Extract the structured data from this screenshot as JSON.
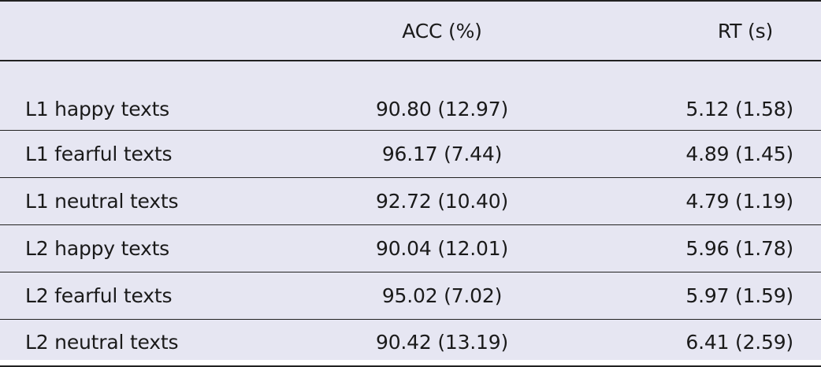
{
  "table": {
    "headers": [
      "",
      "ACC (%)",
      "RT (s)"
    ],
    "rows": [
      {
        "condition": "L1 happy texts",
        "acc": "90.80 (12.97)",
        "rt": "5.12 (1.58)"
      },
      {
        "condition": "L1 fearful texts",
        "acc": "96.17 (7.44)",
        "rt": "4.89 (1.45)"
      },
      {
        "condition": "L1 neutral texts",
        "acc": "92.72 (10.40)",
        "rt": "4.79 (1.19)"
      },
      {
        "condition": "L2 happy texts",
        "acc": "90.04 (12.01)",
        "rt": "5.96 (1.78)"
      },
      {
        "condition": "L2 fearful texts",
        "acc": "95.02 (7.02)",
        "rt": "5.97 (1.59)"
      },
      {
        "condition": "L2 neutral texts",
        "acc": "90.42 (13.19)",
        "rt": "6.41 (2.59)"
      }
    ]
  },
  "colors": {
    "background": "#e6e6f2",
    "rule": "#222222",
    "text": "#1a1a1a"
  }
}
